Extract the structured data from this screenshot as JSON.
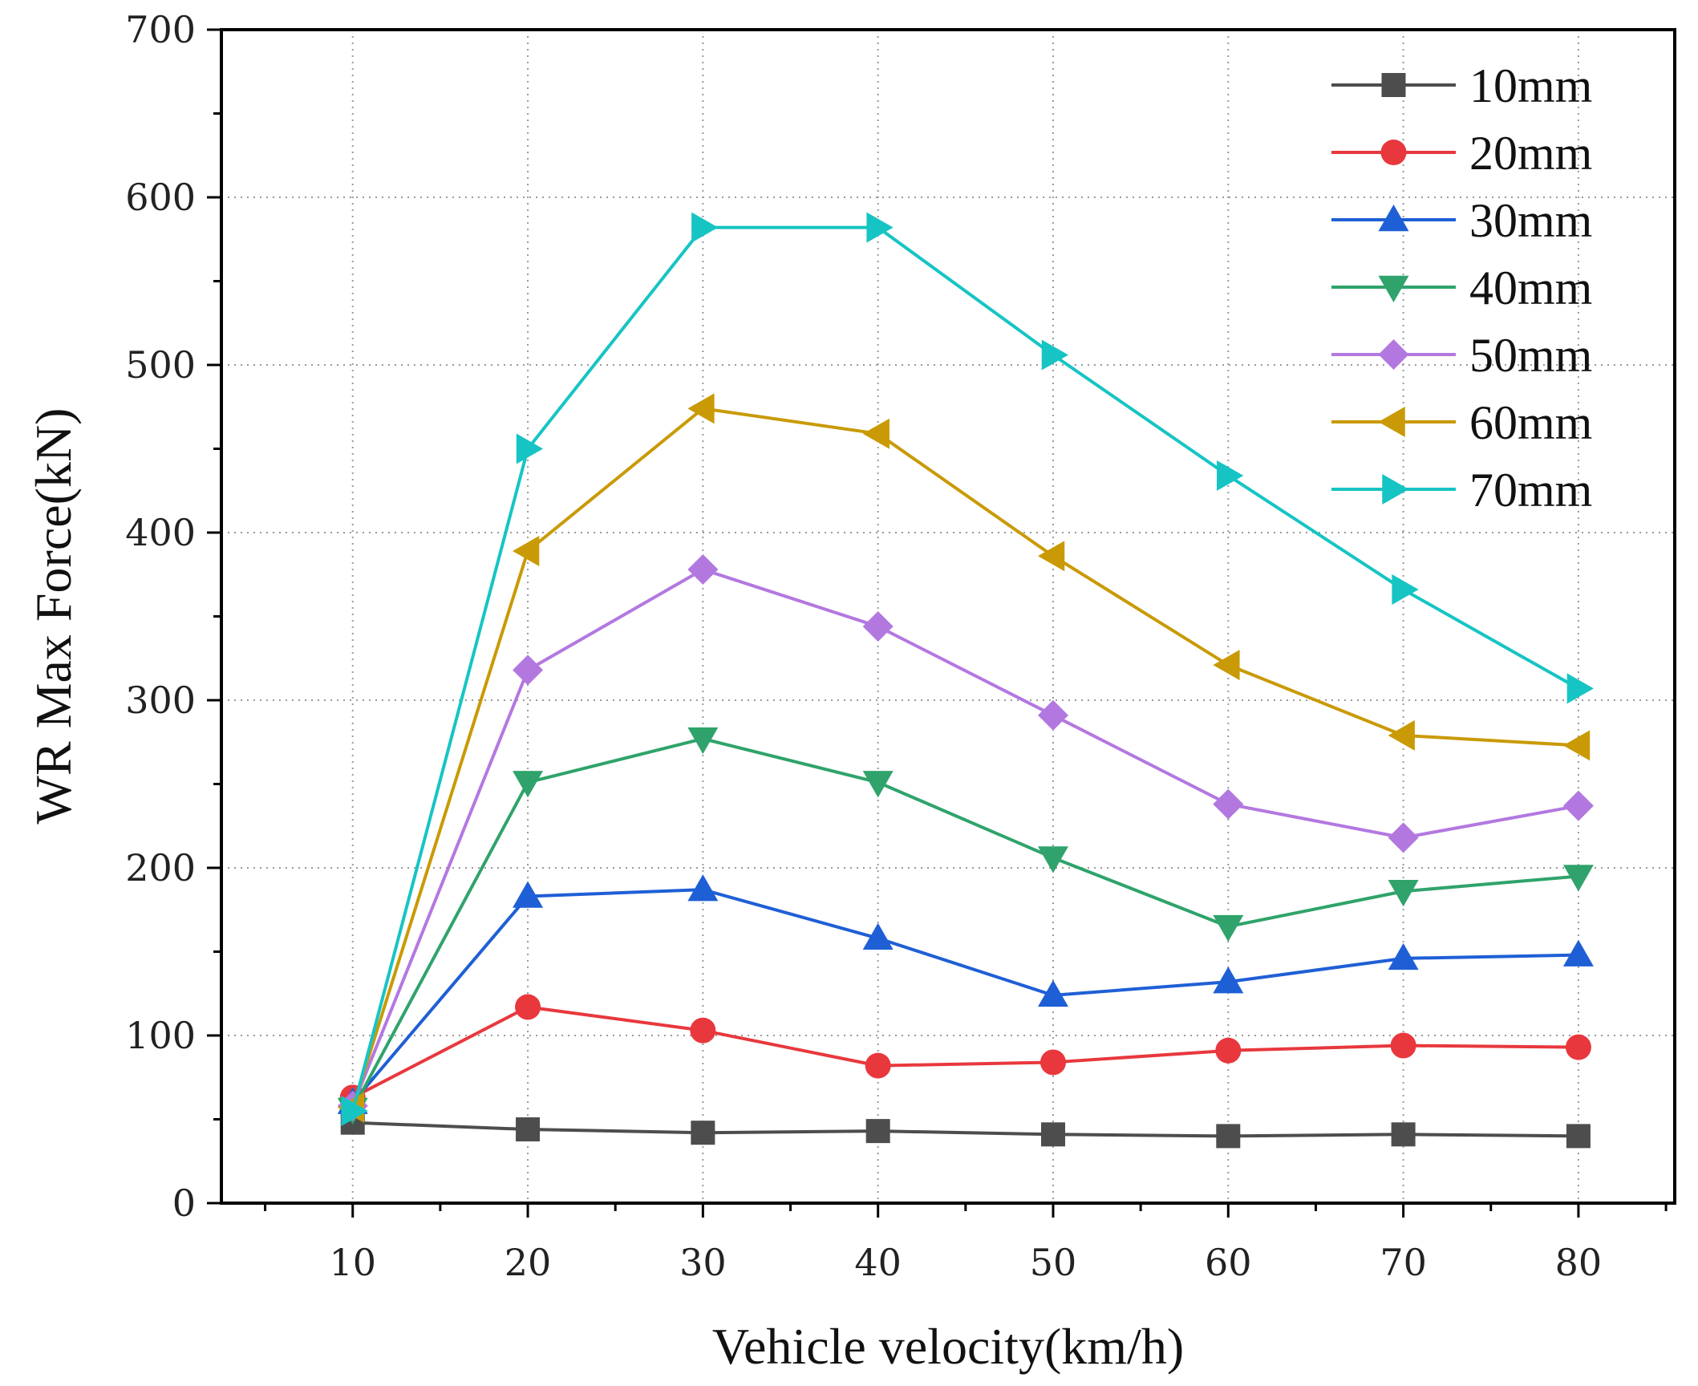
{
  "chart_data": {
    "type": "line",
    "title": "",
    "xlabel": "Vehicle velocity(km/h)",
    "ylabel": "WR Max Force(kN)",
    "xlim": [
      2.5,
      85.5
    ],
    "ylim": [
      0,
      700
    ],
    "x": [
      10,
      20,
      30,
      40,
      50,
      60,
      70,
      80
    ],
    "x_ticks": [
      "10",
      "20",
      "30",
      "40",
      "50",
      "60",
      "70",
      "80"
    ],
    "y_ticks": [
      "0",
      "100",
      "200",
      "300",
      "400",
      "500",
      "600",
      "700"
    ],
    "grid": true,
    "legend_position": "top-right",
    "series": [
      {
        "name": "10mm",
        "color": "#4d4d4d",
        "marker": "square",
        "values": [
          48,
          44,
          42,
          43,
          41,
          40,
          41,
          40
        ]
      },
      {
        "name": "20mm",
        "color": "#e8383d",
        "marker": "circle",
        "values": [
          63,
          117,
          103,
          82,
          84,
          91,
          94,
          93
        ]
      },
      {
        "name": "30mm",
        "color": "#1f5fd6",
        "marker": "triangle-up",
        "values": [
          60,
          183,
          187,
          158,
          124,
          132,
          146,
          148
        ]
      },
      {
        "name": "40mm",
        "color": "#2fa36b",
        "marker": "triangle-down",
        "values": [
          56,
          251,
          277,
          251,
          206,
          165,
          186,
          195
        ]
      },
      {
        "name": "50mm",
        "color": "#b378e0",
        "marker": "diamond",
        "values": [
          58,
          318,
          378,
          344,
          291,
          238,
          218,
          237
        ]
      },
      {
        "name": "60mm",
        "color": "#c99a06",
        "marker": "triangle-left",
        "values": [
          57,
          389,
          474,
          459,
          386,
          321,
          279,
          273
        ]
      },
      {
        "name": "70mm",
        "color": "#17c4c4",
        "marker": "triangle-right",
        "values": [
          55,
          450,
          582,
          582,
          506,
          434,
          366,
          307
        ]
      }
    ]
  }
}
